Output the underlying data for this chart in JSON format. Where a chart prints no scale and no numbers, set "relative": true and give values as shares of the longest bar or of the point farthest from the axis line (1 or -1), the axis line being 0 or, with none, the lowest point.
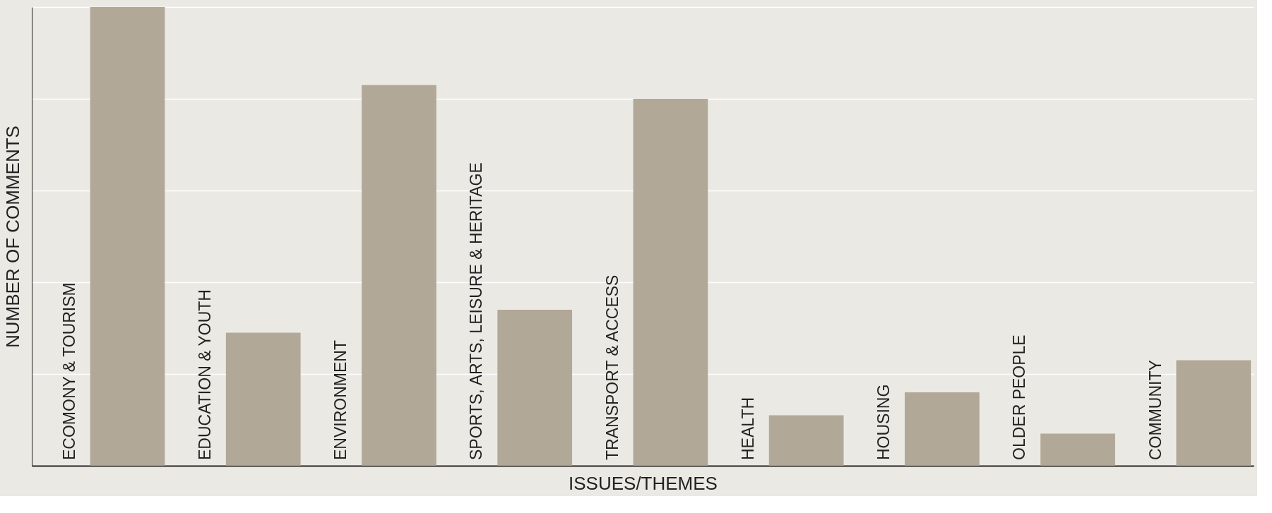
{
  "chart_data": {
    "type": "bar",
    "xlabel": "ISSUES/THEMES",
    "ylabel": "NUMBER OF COMMENTS",
    "relative": true,
    "grid": "y",
    "categories": [
      "ECOMONY & TOURISM",
      "EDUCATION & YOUTH",
      "ENVIRONMENT",
      "SPORTS, ARTS, LEISURE & HERITAGE",
      "TRANSPORT & ACCESS",
      "HEALTH",
      "HOUSING",
      "OLDER PEOPLE",
      "COMMUNITY"
    ],
    "values": [
      1.0,
      0.29,
      0.83,
      0.34,
      0.8,
      0.11,
      0.16,
      0.07,
      0.23
    ],
    "color": "#b2a898"
  }
}
